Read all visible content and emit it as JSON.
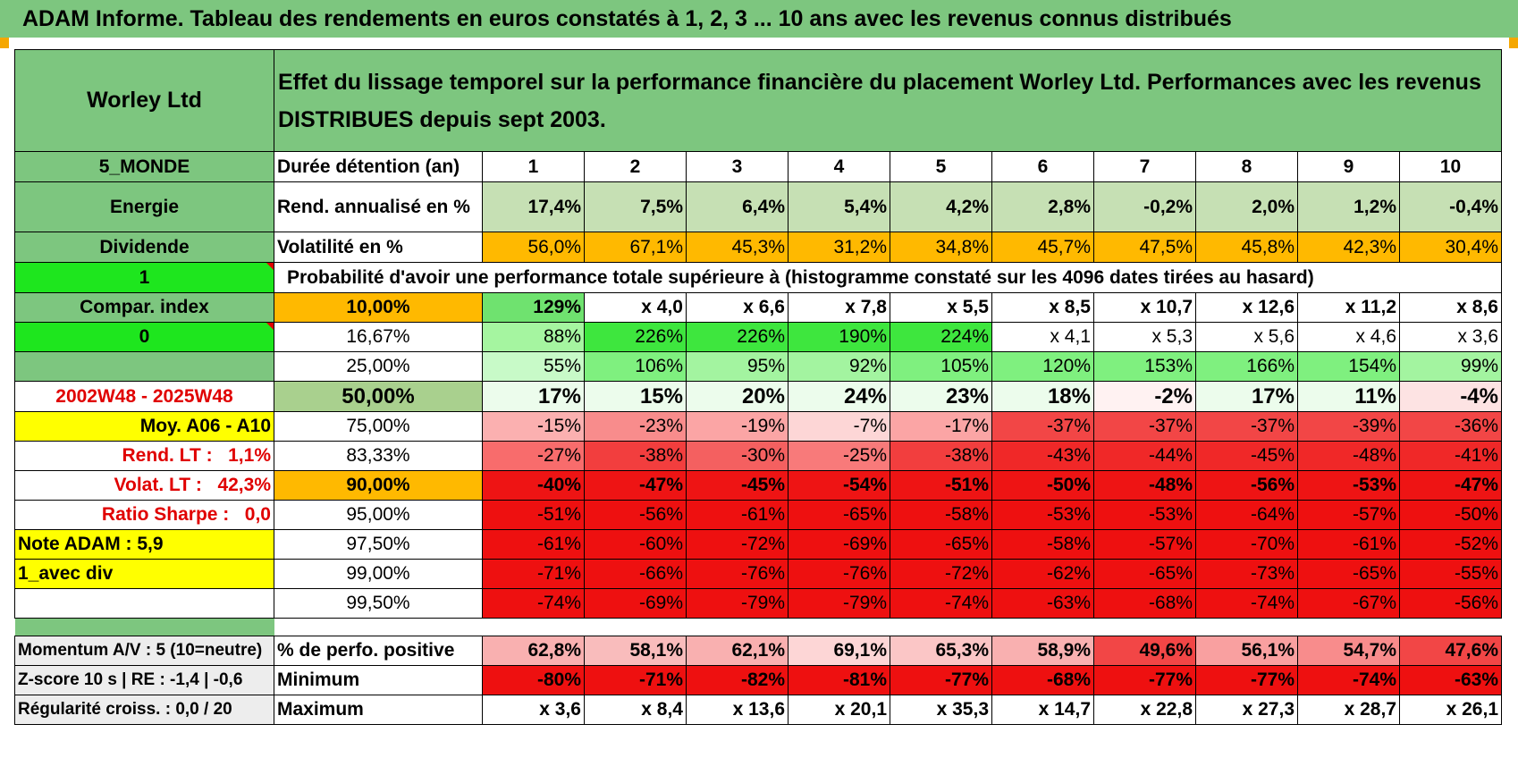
{
  "title": "ADAM Informe. Tableau des rendements en euros constatés à 1, 2, 3 ... 10 ans avec les revenus connus distribués",
  "header": {
    "company": "Worley Ltd",
    "description": "Effet du lissage temporel sur la performance financière du placement Worley Ltd. Performances avec les revenus DISTRIBUES depuis sept 2003."
  },
  "side": {
    "zone": "5_MONDE",
    "sector": "Energie",
    "type": "Dividende",
    "flag1": "1",
    "compar": "Compar. index",
    "flag2": "0",
    "blank": "",
    "period": "2002W48 - 2025W48",
    "moy": "Moy. A06 - A10",
    "rend_lt_label": "Rend. LT :",
    "rend_lt_value": "1,1%",
    "volat_lt_label": "Volat. LT :",
    "volat_lt_value": "42,3%",
    "sharpe_label": "Ratio Sharpe :",
    "sharpe_value": "0,0",
    "note": "Note ADAM : 5,9",
    "avec_div": "1_avec div"
  },
  "labels": {
    "duree": "Durée détention (an)",
    "rend": "Rend. annualisé en %",
    "volat": "Volatilité en %",
    "prob": "Probabilité d'avoir une performance totale supérieure à (histogramme constaté sur les 4096 dates tirées au hasard)"
  },
  "years": [
    "1",
    "2",
    "3",
    "4",
    "5",
    "6",
    "7",
    "8",
    "9",
    "10"
  ],
  "rend": [
    "17,4%",
    "7,5%",
    "6,4%",
    "5,4%",
    "4,2%",
    "2,8%",
    "-0,2%",
    "2,0%",
    "1,2%",
    "-0,4%"
  ],
  "volat": [
    "56,0%",
    "67,1%",
    "45,3%",
    "31,2%",
    "34,8%",
    "45,7%",
    "47,5%",
    "45,8%",
    "42,3%",
    "30,4%"
  ],
  "prob_rows": [
    {
      "pct": "10,00%",
      "vals": [
        "129%",
        "x 4,0",
        "x 6,6",
        "x 7,8",
        "x 5,5",
        "x 8,5",
        "x 10,7",
        "x 12,6",
        "x 11,2",
        "x 8,6"
      ]
    },
    {
      "pct": "16,67%",
      "vals": [
        "88%",
        "226%",
        "226%",
        "190%",
        "224%",
        "x 4,1",
        "x 5,3",
        "x 5,6",
        "x 4,6",
        "x 3,6"
      ]
    },
    {
      "pct": "25,00%",
      "vals": [
        "55%",
        "106%",
        "95%",
        "92%",
        "105%",
        "120%",
        "153%",
        "166%",
        "154%",
        "99%"
      ]
    },
    {
      "pct": "50,00%",
      "vals": [
        "17%",
        "15%",
        "20%",
        "24%",
        "23%",
        "18%",
        "-2%",
        "17%",
        "11%",
        "-4%"
      ]
    },
    {
      "pct": "75,00%",
      "vals": [
        "-15%",
        "-23%",
        "-19%",
        "-7%",
        "-17%",
        "-37%",
        "-37%",
        "-37%",
        "-39%",
        "-36%"
      ]
    },
    {
      "pct": "83,33%",
      "vals": [
        "-27%",
        "-38%",
        "-30%",
        "-25%",
        "-38%",
        "-43%",
        "-44%",
        "-45%",
        "-48%",
        "-41%"
      ]
    },
    {
      "pct": "90,00%",
      "vals": [
        "-40%",
        "-47%",
        "-45%",
        "-54%",
        "-51%",
        "-50%",
        "-48%",
        "-56%",
        "-53%",
        "-47%"
      ]
    },
    {
      "pct": "95,00%",
      "vals": [
        "-51%",
        "-56%",
        "-61%",
        "-65%",
        "-58%",
        "-53%",
        "-53%",
        "-64%",
        "-57%",
        "-50%"
      ]
    },
    {
      "pct": "97,50%",
      "vals": [
        "-61%",
        "-60%",
        "-72%",
        "-69%",
        "-65%",
        "-58%",
        "-57%",
        "-70%",
        "-61%",
        "-52%"
      ]
    },
    {
      "pct": "99,00%",
      "vals": [
        "-71%",
        "-66%",
        "-76%",
        "-76%",
        "-72%",
        "-62%",
        "-65%",
        "-73%",
        "-65%",
        "-55%"
      ]
    },
    {
      "pct": "99,50%",
      "vals": [
        "-74%",
        "-69%",
        "-79%",
        "-79%",
        "-74%",
        "-63%",
        "-68%",
        "-74%",
        "-67%",
        "-56%"
      ]
    }
  ],
  "bottom": {
    "momentum": "Momentum A/V : 5 (10=neutre)",
    "zscore": "Z-score 10 s | RE : -1,4 | -0,6",
    "regularite": "Régularité croiss. : 0,0 / 20",
    "pos_label": "% de perfo. positive",
    "min_label": "Minimum",
    "max_label": "Maximum",
    "pos": [
      "62,8%",
      "58,1%",
      "62,1%",
      "69,1%",
      "65,3%",
      "58,9%",
      "49,6%",
      "56,1%",
      "54,7%",
      "47,6%"
    ],
    "min": [
      "-80%",
      "-71%",
      "-82%",
      "-81%",
      "-77%",
      "-68%",
      "-77%",
      "-77%",
      "-74%",
      "-63%"
    ],
    "max": [
      "x 3,6",
      "x 8,4",
      "x 13,6",
      "x 20,1",
      "x 35,3",
      "x 14,7",
      "x 22,8",
      "x 27,3",
      "x 28,7",
      "x 26,1"
    ]
  },
  "colors": {
    "header_green": "#7dc67f",
    "bright_green": "#1ee61e",
    "orange": "#ffb900",
    "yellow": "#ffff00",
    "red_text": "#e00000",
    "pale_green": "#c6e0b4"
  }
}
